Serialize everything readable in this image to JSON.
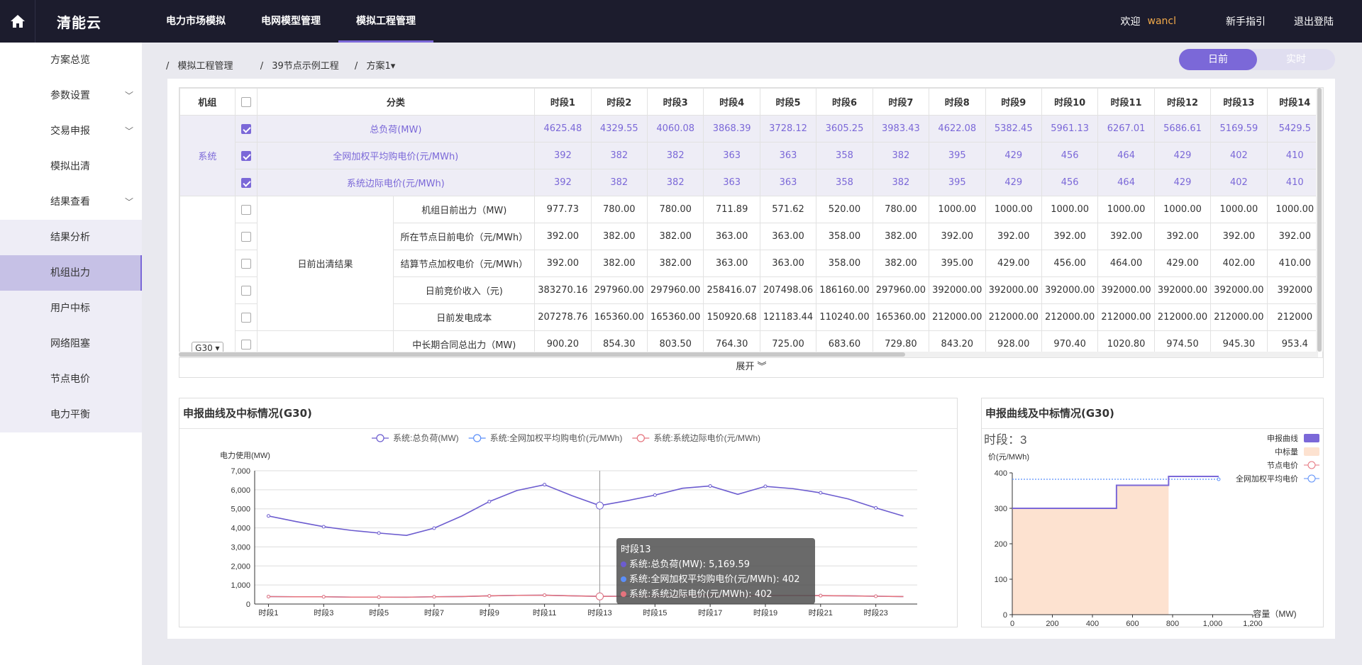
{
  "app": {
    "logo": "清能云",
    "nav": [
      "电力市场模拟",
      "电网模型管理",
      "模拟工程管理"
    ],
    "welcome": "欢迎",
    "user": "wancl",
    "guide": "新手指引",
    "logout": "退出登陆"
  },
  "sidebar": [
    {
      "label": "方案总览",
      "chev": ""
    },
    {
      "label": "参数设置",
      "chev": "﹀"
    },
    {
      "label": "交易申报",
      "chev": "﹀"
    },
    {
      "label": "模拟出清",
      "chev": ""
    },
    {
      "label": "结果查看",
      "chev": "﹀"
    },
    {
      "label": "结果分析",
      "chev": ""
    },
    {
      "label": "机组出力",
      "chev": ""
    },
    {
      "label": "用户中标",
      "chev": ""
    },
    {
      "label": "网络阻塞",
      "chev": ""
    },
    {
      "label": "节点电价",
      "chev": ""
    },
    {
      "label": "电力平衡",
      "chev": ""
    }
  ],
  "breadcrumb": [
    "/",
    "模拟工程管理",
    "/",
    "39节点示例工程",
    "/",
    "方案1▾"
  ],
  "toggle": {
    "on": "日前",
    "off": "实时"
  },
  "table": {
    "headers": {
      "unit": "机组",
      "cat": "分类",
      "periods": [
        "时段1",
        "时段2",
        "时段3",
        "时段4",
        "时段5",
        "时段6",
        "时段7",
        "时段8",
        "时段9",
        "时段10",
        "时段11",
        "时段12",
        "时段13",
        "时段14"
      ]
    },
    "system_label": "系统",
    "system_rows": [
      {
        "label": "总负荷(MW)",
        "values": [
          "4625.48",
          "4329.55",
          "4060.08",
          "3868.39",
          "3728.12",
          "3605.25",
          "3983.43",
          "4622.08",
          "5382.45",
          "5961.13",
          "6267.01",
          "5686.61",
          "5169.59",
          "5429.5"
        ]
      },
      {
        "label": "全网加权平均购电价(元/MWh)",
        "values": [
          "392",
          "382",
          "382",
          "363",
          "363",
          "358",
          "382",
          "395",
          "429",
          "456",
          "464",
          "429",
          "402",
          "410"
        ]
      },
      {
        "label": "系统边际电价(元/MWh)",
        "values": [
          "392",
          "382",
          "382",
          "363",
          "363",
          "358",
          "382",
          "395",
          "429",
          "456",
          "464",
          "429",
          "402",
          "410"
        ]
      }
    ],
    "unit_select": "G30 ▾",
    "group_label": "日前出清结果",
    "unit_rows": [
      {
        "label": "机组日前出力（MW)",
        "values": [
          "977.73",
          "780.00",
          "780.00",
          "711.89",
          "571.62",
          "520.00",
          "780.00",
          "1000.00",
          "1000.00",
          "1000.00",
          "1000.00",
          "1000.00",
          "1000.00",
          "1000.00"
        ]
      },
      {
        "label": "所在节点日前电价（元/MWh）",
        "values": [
          "392.00",
          "382.00",
          "382.00",
          "363.00",
          "363.00",
          "358.00",
          "382.00",
          "392.00",
          "392.00",
          "392.00",
          "392.00",
          "392.00",
          "392.00",
          "392.00"
        ]
      },
      {
        "label": "结算节点加权电价（元/MWh）",
        "values": [
          "392.00",
          "382.00",
          "382.00",
          "363.00",
          "363.00",
          "358.00",
          "382.00",
          "395.00",
          "429.00",
          "456.00",
          "464.00",
          "429.00",
          "402.00",
          "410.00"
        ]
      },
      {
        "label": "日前竞价收入（元)",
        "values": [
          "383270.16",
          "297960.00",
          "297960.00",
          "258416.07",
          "207498.06",
          "186160.00",
          "297960.00",
          "392000.00",
          "392000.00",
          "392000.00",
          "392000.00",
          "392000.00",
          "392000.00",
          "392000"
        ]
      },
      {
        "label": "日前发电成本",
        "values": [
          "207278.76",
          "165360.00",
          "165360.00",
          "150920.68",
          "121183.44",
          "110240.00",
          "165360.00",
          "212000.00",
          "212000.00",
          "212000.00",
          "212000.00",
          "212000.00",
          "212000.00",
          "212000"
        ]
      },
      {
        "label": "中长期合同总出力（MW)",
        "values": [
          "900.20",
          "854.30",
          "803.50",
          "764.30",
          "725.00",
          "683.60",
          "729.80",
          "843.20",
          "928.00",
          "970.40",
          "1020.80",
          "974.50",
          "945.30",
          "953.4"
        ]
      }
    ],
    "expand": "展开 ︾"
  },
  "chart_data": [
    {
      "type": "line",
      "title": "申报曲线及中标情况(G30)",
      "ylabel": "电力使用(MW)",
      "ylim": [
        0,
        7000
      ],
      "yticks": [
        "0",
        "1,000",
        "2,000",
        "3,000",
        "4,000",
        "5,000",
        "6,000",
        "7,000"
      ],
      "x": [
        "时段1",
        "时段2",
        "时段3",
        "时段4",
        "时段5",
        "时段6",
        "时段7",
        "时段8",
        "时段9",
        "时段10",
        "时段11",
        "时段12",
        "时段13",
        "时段14",
        "时段15",
        "时段16",
        "时段17",
        "时段18",
        "时段19",
        "时段20",
        "时段21",
        "时段22",
        "时段23",
        "时段24"
      ],
      "xtick_labels": [
        "时段1",
        "时段3",
        "时段5",
        "时段7",
        "时段9",
        "时段11",
        "时段13",
        "时段15",
        "时段17",
        "时段19",
        "时段21",
        "时段23"
      ],
      "series": [
        {
          "name": "系统:总负荷(MW)",
          "color": "#6c5ccf",
          "values": [
            4625,
            4330,
            4060,
            3868,
            3728,
            3605,
            3983,
            4622,
            5382,
            5961,
            6267,
            5687,
            5170,
            5430,
            5720,
            6080,
            6200,
            5760,
            6180,
            6060,
            5840,
            5520,
            5050,
            4620
          ]
        },
        {
          "name": "系统:全网加权平均购电价(元/MWh)",
          "color": "#5b8ff9",
          "values": [
            392,
            382,
            382,
            363,
            363,
            358,
            382,
            395,
            429,
            456,
            464,
            429,
            402,
            410,
            420,
            440,
            450,
            430,
            450,
            450,
            440,
            430,
            410,
            392
          ]
        },
        {
          "name": "系统:系统边际电价(元/MWh)",
          "color": "#e5737d",
          "values": [
            392,
            382,
            382,
            363,
            363,
            358,
            382,
            395,
            429,
            456,
            464,
            429,
            402,
            410,
            420,
            440,
            450,
            430,
            450,
            450,
            440,
            430,
            410,
            392
          ]
        }
      ],
      "tooltip": {
        "title": "时段13",
        "lines": [
          "系统:总负荷(MW): 5,169.59",
          "系统:全网加权平均购电价(元/MWh): 402",
          "系统:系统边际电价(元/MWh): 402"
        ]
      }
    },
    {
      "type": "line",
      "title": "申报曲线及中标情况(G30)",
      "period_label": "时段：3",
      "ylabel": "价(元/MWh)",
      "xlabel": "容量（MW)",
      "ylim": [
        0,
        400
      ],
      "xlim": [
        0,
        1200
      ],
      "yticks": [
        "0",
        "100",
        "200",
        "300",
        "400"
      ],
      "xticks": [
        "0",
        "200",
        "400",
        "600",
        "800",
        "1,000",
        "1,200"
      ],
      "legend": [
        "申报曲线",
        "中标量",
        "节点电价",
        "全网加权平均电价"
      ],
      "bid_curve": [
        [
          0,
          300
        ],
        [
          520,
          300
        ],
        [
          520,
          365
        ],
        [
          780,
          365
        ],
        [
          780,
          390
        ],
        [
          1030,
          390
        ]
      ],
      "cleared_mw": 780,
      "node_price": 382,
      "avg_price": 382
    }
  ]
}
